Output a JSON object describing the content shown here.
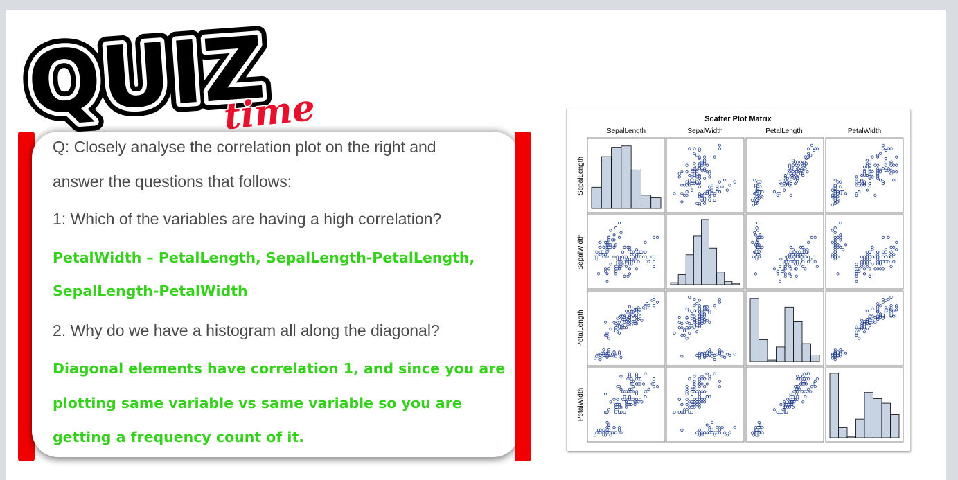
{
  "logo": {
    "main_text": "QUIZ",
    "sub_text": "time"
  },
  "questions": {
    "intro_line1": "Q: Closely analyse the correlation plot on the right and",
    "intro_line2": "answer the questions that follows:",
    "q1": "1: Which of the variables are having a high correlation?",
    "a1_line1": "PetalWidth – PetalLength, SepalLength-PetalLength,",
    "a1_line2": "SepalLength-PetalWidth",
    "q2": "2. Why do we have a histogram all along the diagonal?",
    "a2_line1": "Diagonal elements have correlation 1, and since you are",
    "a2_line2": "plotting same variable vs same variable so you are",
    "a2_line3": "getting a frequency count of it."
  },
  "colors": {
    "red_bar": "#f00000",
    "answer_green": "#36d11c",
    "question_gray": "#4a4a4a",
    "point_blue": "#1f3f8f",
    "hist_fill": "#c7d3e2"
  },
  "chart_data": {
    "type": "scatter",
    "title": "Scatter Plot Matrix",
    "variables": [
      "SepalLength",
      "SepalWidth",
      "PetalLength",
      "PetalWidth"
    ],
    "diagonal": "histogram",
    "histograms": {
      "SepalLength": [
        0.32,
        0.78,
        0.92,
        0.94,
        0.58,
        0.2,
        0.16
      ],
      "SepalWidth": [
        0.03,
        0.15,
        0.45,
        0.73,
        0.98,
        0.55,
        0.19,
        0.05,
        0.02
      ],
      "PetalLength": [
        0.95,
        0.33,
        0.02,
        0.22,
        0.82,
        0.6,
        0.27,
        0.1
      ],
      "PetalWidth": [
        0.97,
        0.15,
        0.02,
        0.28,
        0.68,
        0.59,
        0.52,
        0.35
      ]
    },
    "iris": {
      "setosa": [
        [
          5.1,
          3.5,
          1.4,
          0.2
        ],
        [
          4.9,
          3.0,
          1.4,
          0.2
        ],
        [
          4.7,
          3.2,
          1.3,
          0.2
        ],
        [
          4.6,
          3.1,
          1.5,
          0.2
        ],
        [
          5.0,
          3.6,
          1.4,
          0.2
        ],
        [
          5.4,
          3.9,
          1.7,
          0.4
        ],
        [
          4.6,
          3.4,
          1.4,
          0.3
        ],
        [
          5.0,
          3.4,
          1.5,
          0.2
        ],
        [
          4.4,
          2.9,
          1.4,
          0.2
        ],
        [
          4.9,
          3.1,
          1.5,
          0.1
        ],
        [
          5.4,
          3.7,
          1.5,
          0.2
        ],
        [
          4.8,
          3.4,
          1.6,
          0.2
        ],
        [
          4.8,
          3.0,
          1.4,
          0.1
        ],
        [
          4.3,
          3.0,
          1.1,
          0.1
        ],
        [
          5.8,
          4.0,
          1.2,
          0.2
        ],
        [
          5.7,
          4.4,
          1.5,
          0.4
        ],
        [
          5.4,
          3.9,
          1.3,
          0.4
        ],
        [
          5.1,
          3.5,
          1.4,
          0.3
        ],
        [
          5.7,
          3.8,
          1.7,
          0.3
        ],
        [
          5.1,
          3.8,
          1.5,
          0.3
        ],
        [
          5.4,
          3.4,
          1.7,
          0.2
        ],
        [
          5.1,
          3.7,
          1.5,
          0.4
        ],
        [
          4.6,
          3.6,
          1.0,
          0.2
        ],
        [
          5.1,
          3.3,
          1.7,
          0.5
        ],
        [
          4.8,
          3.4,
          1.9,
          0.2
        ],
        [
          5.0,
          3.0,
          1.6,
          0.2
        ],
        [
          5.0,
          3.4,
          1.6,
          0.4
        ],
        [
          5.2,
          3.5,
          1.5,
          0.2
        ],
        [
          5.2,
          3.4,
          1.4,
          0.2
        ],
        [
          4.7,
          3.2,
          1.6,
          0.2
        ],
        [
          4.8,
          3.1,
          1.6,
          0.2
        ],
        [
          5.4,
          3.4,
          1.5,
          0.4
        ],
        [
          5.2,
          4.1,
          1.5,
          0.1
        ],
        [
          5.5,
          4.2,
          1.4,
          0.2
        ],
        [
          4.9,
          3.1,
          1.5,
          0.2
        ],
        [
          5.0,
          3.2,
          1.2,
          0.2
        ],
        [
          5.5,
          3.5,
          1.3,
          0.2
        ],
        [
          4.9,
          3.6,
          1.4,
          0.1
        ],
        [
          4.4,
          3.0,
          1.3,
          0.2
        ],
        [
          5.1,
          3.4,
          1.5,
          0.2
        ],
        [
          5.0,
          3.5,
          1.3,
          0.3
        ],
        [
          4.5,
          2.3,
          1.3,
          0.3
        ],
        [
          4.4,
          3.2,
          1.3,
          0.2
        ],
        [
          5.0,
          3.5,
          1.6,
          0.6
        ],
        [
          5.1,
          3.8,
          1.9,
          0.4
        ],
        [
          4.8,
          3.0,
          1.4,
          0.3
        ],
        [
          5.1,
          3.8,
          1.6,
          0.2
        ],
        [
          4.6,
          3.2,
          1.4,
          0.2
        ],
        [
          5.3,
          3.7,
          1.5,
          0.2
        ],
        [
          5.0,
          3.3,
          1.4,
          0.2
        ]
      ],
      "versicolor": [
        [
          7.0,
          3.2,
          4.7,
          1.4
        ],
        [
          6.4,
          3.2,
          4.5,
          1.5
        ],
        [
          6.9,
          3.1,
          4.9,
          1.5
        ],
        [
          5.5,
          2.3,
          4.0,
          1.3
        ],
        [
          6.5,
          2.8,
          4.6,
          1.5
        ],
        [
          5.7,
          2.8,
          4.5,
          1.3
        ],
        [
          6.3,
          3.3,
          4.7,
          1.6
        ],
        [
          4.9,
          2.4,
          3.3,
          1.0
        ],
        [
          6.6,
          2.9,
          4.6,
          1.3
        ],
        [
          5.2,
          2.7,
          3.9,
          1.4
        ],
        [
          5.0,
          2.0,
          3.5,
          1.0
        ],
        [
          5.9,
          3.0,
          4.2,
          1.5
        ],
        [
          6.0,
          2.2,
          4.0,
          1.0
        ],
        [
          6.1,
          2.9,
          4.7,
          1.4
        ],
        [
          5.6,
          2.9,
          3.6,
          1.3
        ],
        [
          6.7,
          3.1,
          4.4,
          1.4
        ],
        [
          5.6,
          3.0,
          4.5,
          1.5
        ],
        [
          5.8,
          2.7,
          4.1,
          1.0
        ],
        [
          6.2,
          2.2,
          4.5,
          1.5
        ],
        [
          5.6,
          2.5,
          3.9,
          1.1
        ],
        [
          5.9,
          3.2,
          4.8,
          1.8
        ],
        [
          6.1,
          2.8,
          4.0,
          1.3
        ],
        [
          6.3,
          2.5,
          4.9,
          1.5
        ],
        [
          6.1,
          2.8,
          4.7,
          1.2
        ],
        [
          6.4,
          2.9,
          4.3,
          1.3
        ],
        [
          6.6,
          3.0,
          4.4,
          1.4
        ],
        [
          6.8,
          2.8,
          4.8,
          1.4
        ],
        [
          6.7,
          3.0,
          5.0,
          1.7
        ],
        [
          6.0,
          2.9,
          4.5,
          1.5
        ],
        [
          5.7,
          2.6,
          3.5,
          1.0
        ],
        [
          5.5,
          2.4,
          3.8,
          1.1
        ],
        [
          5.5,
          2.4,
          3.7,
          1.0
        ],
        [
          5.8,
          2.7,
          3.9,
          1.2
        ],
        [
          6.0,
          2.7,
          5.1,
          1.6
        ],
        [
          5.4,
          3.0,
          4.5,
          1.5
        ],
        [
          6.0,
          3.4,
          4.5,
          1.6
        ],
        [
          6.7,
          3.1,
          4.7,
          1.5
        ],
        [
          6.3,
          2.3,
          4.4,
          1.3
        ],
        [
          5.6,
          3.0,
          4.1,
          1.3
        ],
        [
          5.5,
          2.5,
          4.0,
          1.3
        ],
        [
          5.5,
          2.6,
          4.4,
          1.2
        ],
        [
          6.1,
          3.0,
          4.6,
          1.4
        ],
        [
          5.8,
          2.6,
          4.0,
          1.2
        ],
        [
          5.0,
          2.3,
          3.3,
          1.0
        ],
        [
          5.6,
          2.7,
          4.2,
          1.3
        ],
        [
          5.7,
          3.0,
          4.2,
          1.2
        ],
        [
          5.7,
          2.9,
          4.2,
          1.3
        ],
        [
          6.2,
          2.9,
          4.3,
          1.3
        ],
        [
          5.1,
          2.5,
          3.0,
          1.1
        ],
        [
          5.7,
          2.8,
          4.1,
          1.3
        ]
      ],
      "virginica": [
        [
          6.3,
          3.3,
          6.0,
          2.5
        ],
        [
          5.8,
          2.7,
          5.1,
          1.9
        ],
        [
          7.1,
          3.0,
          5.9,
          2.1
        ],
        [
          6.3,
          2.9,
          5.6,
          1.8
        ],
        [
          6.5,
          3.0,
          5.8,
          2.2
        ],
        [
          7.6,
          3.0,
          6.6,
          2.1
        ],
        [
          4.9,
          2.5,
          4.5,
          1.7
        ],
        [
          7.3,
          2.9,
          6.3,
          1.8
        ],
        [
          6.7,
          2.5,
          5.8,
          1.8
        ],
        [
          7.2,
          3.6,
          6.1,
          2.5
        ],
        [
          6.5,
          3.2,
          5.1,
          2.0
        ],
        [
          6.4,
          2.7,
          5.3,
          1.9
        ],
        [
          6.8,
          3.0,
          5.5,
          2.1
        ],
        [
          5.7,
          2.5,
          5.0,
          2.0
        ],
        [
          5.8,
          2.8,
          5.1,
          2.4
        ],
        [
          6.4,
          3.2,
          5.3,
          2.3
        ],
        [
          6.5,
          3.0,
          5.5,
          1.8
        ],
        [
          7.7,
          3.8,
          6.7,
          2.2
        ],
        [
          7.7,
          2.6,
          6.9,
          2.3
        ],
        [
          6.0,
          2.2,
          5.0,
          1.5
        ],
        [
          6.9,
          3.2,
          5.7,
          2.3
        ],
        [
          5.6,
          2.8,
          4.9,
          2.0
        ],
        [
          7.7,
          2.8,
          6.7,
          2.0
        ],
        [
          6.3,
          2.7,
          4.9,
          1.8
        ],
        [
          6.7,
          3.3,
          5.7,
          2.1
        ],
        [
          7.2,
          3.2,
          6.0,
          1.8
        ],
        [
          6.2,
          2.8,
          4.8,
          1.8
        ],
        [
          6.1,
          3.0,
          4.9,
          1.8
        ],
        [
          6.4,
          2.8,
          5.6,
          2.1
        ],
        [
          7.2,
          3.0,
          5.8,
          1.6
        ],
        [
          7.4,
          2.8,
          6.1,
          1.9
        ],
        [
          7.9,
          3.8,
          6.4,
          2.0
        ],
        [
          6.4,
          2.8,
          5.6,
          2.2
        ],
        [
          6.3,
          2.8,
          5.1,
          1.5
        ],
        [
          6.1,
          2.6,
          5.6,
          1.4
        ],
        [
          7.7,
          3.0,
          6.1,
          2.3
        ],
        [
          6.3,
          3.4,
          5.6,
          2.4
        ],
        [
          6.4,
          3.1,
          5.5,
          1.8
        ],
        [
          6.0,
          3.0,
          4.8,
          1.8
        ],
        [
          6.9,
          3.1,
          5.4,
          2.1
        ],
        [
          6.7,
          3.1,
          5.6,
          2.4
        ],
        [
          6.9,
          3.1,
          5.1,
          2.3
        ],
        [
          5.8,
          2.7,
          5.1,
          1.9
        ],
        [
          6.8,
          3.2,
          5.9,
          2.3
        ],
        [
          6.7,
          3.3,
          5.7,
          2.5
        ],
        [
          6.7,
          3.0,
          5.2,
          2.3
        ],
        [
          6.3,
          2.5,
          5.0,
          1.9
        ],
        [
          6.5,
          3.0,
          5.2,
          2.0
        ],
        [
          6.2,
          3.4,
          5.4,
          2.3
        ],
        [
          5.9,
          3.0,
          5.1,
          1.8
        ]
      ]
    },
    "ranges": {
      "SepalLength": [
        4.1,
        8.1
      ],
      "SepalWidth": [
        1.85,
        4.6
      ],
      "PetalLength": [
        0.8,
        7.1
      ],
      "PetalWidth": [
        0.0,
        2.6
      ]
    }
  }
}
